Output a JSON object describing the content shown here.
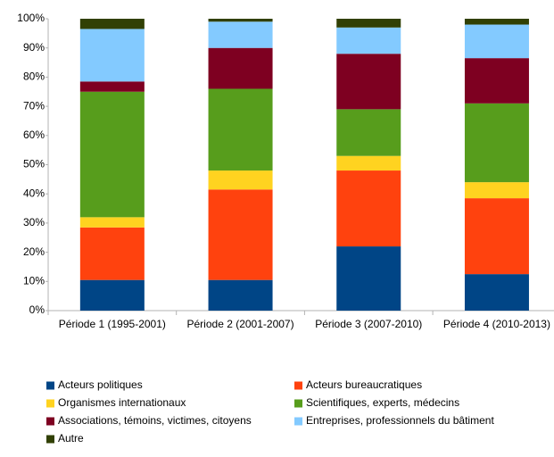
{
  "chart_data": {
    "type": "stacked_bar",
    "categories": [
      "Période 1 (1995-2001)",
      "Période 2 (2001-2007)",
      "Période 3 (2007-2010)",
      "Période 4 (2010-2013)"
    ],
    "series": [
      {
        "name": "Acteurs politiques",
        "color": "#004586",
        "values": [
          10.5,
          10.5,
          22,
          12.5
        ]
      },
      {
        "name": "Acteurs bureaucratiques",
        "color": "#ff420e",
        "values": [
          18,
          31,
          26,
          26
        ]
      },
      {
        "name": "Organismes internationaux",
        "color": "#ffd320",
        "values": [
          3.5,
          6.5,
          5,
          5.5
        ]
      },
      {
        "name": "Scientifiques, experts, médecins",
        "color": "#579d1c",
        "values": [
          43,
          28,
          16,
          27
        ]
      },
      {
        "name": "Associations, témoins, victimes, citoyens",
        "color": "#7e0021",
        "values": [
          3.5,
          14,
          19,
          15.5
        ]
      },
      {
        "name": "Entreprises, professionnels du bâtiment",
        "color": "#83caff",
        "values": [
          18,
          9,
          9,
          11.5
        ]
      },
      {
        "name": "Autre",
        "color": "#314004",
        "values": [
          3.5,
          1,
          3,
          2
        ]
      }
    ],
    "ylim": [
      0,
      100
    ],
    "yticks": [
      {
        "value": 0,
        "label": "0%"
      },
      {
        "value": 10,
        "label": "10%"
      },
      {
        "value": 20,
        "label": "20%"
      },
      {
        "value": 30,
        "label": "30%"
      },
      {
        "value": 40,
        "label": "40%"
      },
      {
        "value": 50,
        "label": "50%"
      },
      {
        "value": 60,
        "label": "60%"
      },
      {
        "value": 70,
        "label": "70%"
      },
      {
        "value": 80,
        "label": "80%"
      },
      {
        "value": 90,
        "label": "90%"
      },
      {
        "value": 100,
        "label": "100%"
      }
    ],
    "grid": false,
    "legend": "bottom"
  }
}
